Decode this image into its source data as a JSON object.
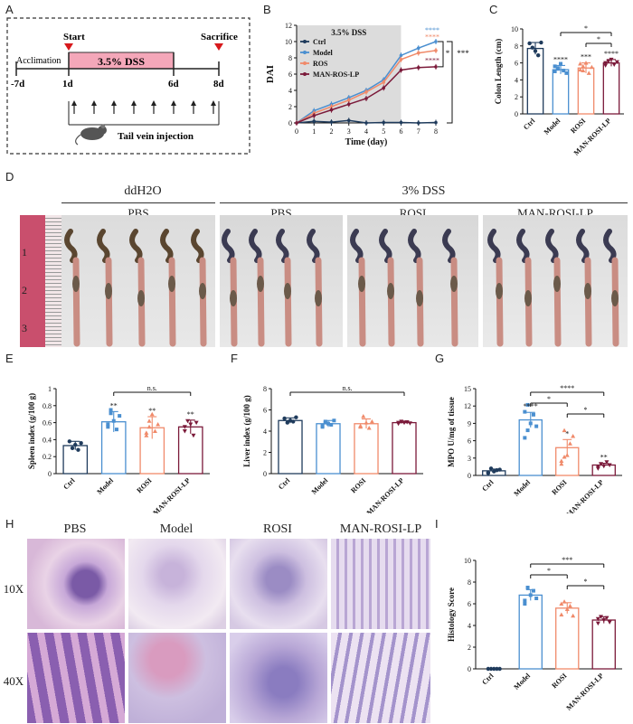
{
  "panel_letters": {
    "A": "A",
    "B": "B",
    "C": "C",
    "D": "D",
    "E": "E",
    "F": "F",
    "G": "G",
    "H": "H",
    "I": "I"
  },
  "panelA": {
    "labels": {
      "start": "Start",
      "sacrifice": "Sacrifice",
      "acclimation": "Acclimation",
      "dss": "3.5% DSS",
      "injection": "Tail vein injection"
    },
    "days": [
      "-7d",
      "1d",
      "6d",
      "8d"
    ],
    "colors": {
      "dss_bar": "#f4a7b9",
      "marker": "#d7191c"
    }
  },
  "chart_data": [
    {
      "id": "B",
      "type": "line",
      "title": "3.5% DSS",
      "xlabel": "Time (day)",
      "ylabel": "DAI",
      "x": [
        0,
        1,
        2,
        3,
        4,
        5,
        6,
        7,
        8
      ],
      "xlim": [
        0,
        8
      ],
      "ylim": [
        0,
        12
      ],
      "yticks": [
        0,
        2,
        4,
        6,
        8,
        10,
        12
      ],
      "shaded_range": [
        0,
        6
      ],
      "series": [
        {
          "name": "Ctrl",
          "color": "#1f3b5c",
          "values": [
            0,
            0.2,
            0.1,
            0.3,
            0,
            0.05,
            0.05,
            0,
            0.05
          ]
        },
        {
          "name": "Model",
          "color": "#4a8fd0",
          "values": [
            0,
            1.5,
            2.3,
            3.1,
            4.0,
            5.3,
            8.3,
            9.2,
            10.0
          ]
        },
        {
          "name": "ROS",
          "color": "#f08a6a",
          "values": [
            0,
            1.2,
            2.0,
            2.8,
            3.8,
            5.0,
            7.8,
            8.6,
            8.9
          ]
        },
        {
          "name": "MAN-ROS-LP",
          "color": "#7b1a3a",
          "values": [
            0,
            0.9,
            1.6,
            2.3,
            3.0,
            4.3,
            6.5,
            6.8,
            6.9
          ]
        }
      ],
      "annotations": {
        "model_sig": "****",
        "ros_sig": "****",
        "manros_sig": "****",
        "bracket_sig1": "*",
        "bracket_sig2": "***"
      }
    },
    {
      "id": "C",
      "type": "bar",
      "ylabel": "Colon Length (cm)",
      "ylim": [
        0,
        10
      ],
      "yticks": [
        0,
        2,
        4,
        6,
        8,
        10
      ],
      "categories": [
        "Ctrl",
        "Model",
        "ROSI",
        "MAN-ROSI-LP"
      ],
      "values": [
        7.7,
        5.2,
        5.4,
        6.0
      ],
      "errors": [
        0.7,
        0.5,
        0.6,
        0.4
      ],
      "points": [
        [
          8.3,
          7.8,
          7.4,
          6.9,
          8.4
        ],
        [
          5.0,
          5.4,
          5.9,
          5.1,
          4.8,
          5.6,
          5.3
        ],
        [
          5.2,
          5.6,
          6.0,
          4.8,
          5.5,
          5.9,
          5.1
        ],
        [
          5.7,
          6.2,
          6.4,
          5.8,
          6.1,
          6.0
        ]
      ],
      "colors": [
        "#1f3b5c",
        "#4a8fd0",
        "#f08a6a",
        "#7b1a3a"
      ],
      "sig_labels": [
        "",
        "****",
        "***",
        "****"
      ],
      "brackets": [
        {
          "from": 1,
          "to": 3,
          "label": "*"
        },
        {
          "from": 2,
          "to": 3,
          "label": "*"
        }
      ]
    },
    {
      "id": "E",
      "type": "bar",
      "ylabel": "Spleen index (g/100 g)",
      "ylim": [
        0,
        1.0
      ],
      "yticks": [
        0.0,
        0.2,
        0.4,
        0.6,
        0.8,
        1.0
      ],
      "categories": [
        "Ctrl",
        "Model",
        "ROSI",
        "MAN-ROSI-LP"
      ],
      "values": [
        0.33,
        0.61,
        0.54,
        0.55
      ],
      "errors": [
        0.05,
        0.12,
        0.13,
        0.08
      ],
      "points": [
        [
          0.38,
          0.3,
          0.34,
          0.28,
          0.36
        ],
        [
          0.55,
          0.75,
          0.62,
          0.52,
          0.68,
          0.58,
          0.71
        ],
        [
          0.45,
          0.62,
          0.7,
          0.5,
          0.58,
          0.48,
          0.55
        ],
        [
          0.5,
          0.62,
          0.58,
          0.45,
          0.6,
          0.55
        ]
      ],
      "colors": [
        "#1f3b5c",
        "#4a8fd0",
        "#f08a6a",
        "#7b1a3a"
      ],
      "sig_labels": [
        "",
        "**",
        "**",
        "**"
      ],
      "brackets": [
        {
          "from": 1,
          "to": 3,
          "label": "n.s."
        }
      ]
    },
    {
      "id": "F",
      "type": "bar",
      "ylabel": "Liver index (g/100 g)",
      "ylim": [
        0,
        8
      ],
      "yticks": [
        0,
        2,
        4,
        6,
        8
      ],
      "categories": [
        "Ctrl",
        "Model",
        "ROSI",
        "MAN-ROSI-LP"
      ],
      "values": [
        5.0,
        4.7,
        4.7,
        4.8
      ],
      "errors": [
        0.25,
        0.3,
        0.45,
        0.15
      ],
      "points": [
        [
          5.2,
          4.8,
          5.0,
          4.9,
          5.3
        ],
        [
          4.5,
          4.9,
          4.7,
          4.6,
          5.0,
          4.4,
          4.8
        ],
        [
          4.4,
          5.4,
          4.8,
          4.3,
          4.9,
          4.5
        ],
        [
          4.7,
          4.9,
          4.8,
          4.85,
          4.75,
          4.8
        ]
      ],
      "colors": [
        "#1f3b5c",
        "#4a8fd0",
        "#f08a6a",
        "#7b1a3a"
      ],
      "sig_labels": [
        "",
        "",
        "",
        ""
      ],
      "brackets": [
        {
          "from": 0,
          "to": 3,
          "label": "n.s."
        }
      ]
    },
    {
      "id": "G",
      "type": "bar",
      "ylabel": "MPO U/mg of tissue",
      "ylim": [
        0,
        15
      ],
      "yticks": [
        0,
        3,
        6,
        9,
        12,
        15
      ],
      "categories": [
        "Ctrl",
        "Model",
        "ROSI",
        "MAN-ROSI-LP"
      ],
      "values": [
        0.8,
        9.6,
        4.8,
        1.8
      ],
      "errors": [
        0.3,
        1.3,
        1.4,
        0.3
      ],
      "points": [
        [
          0.4,
          1.2,
          0.7,
          0.9,
          1.0,
          0.5
        ],
        [
          6.5,
          12.2,
          9.0,
          10.5,
          8.5,
          11.0,
          7.8
        ],
        [
          2.0,
          7.8,
          3.5,
          5.5,
          6.8,
          2.5,
          3.2
        ],
        [
          1.2,
          2.0,
          1.6,
          2.3,
          1.8,
          1.5
        ]
      ],
      "colors": [
        "#1f3b5c",
        "#4a8fd0",
        "#f08a6a",
        "#7b1a3a"
      ],
      "sig_labels": [
        "",
        "****",
        "*",
        "**"
      ],
      "brackets": [
        {
          "from": 1,
          "to": 3,
          "label": "****"
        },
        {
          "from": 1,
          "to": 2,
          "label": "*"
        },
        {
          "from": 2,
          "to": 3,
          "label": "*"
        }
      ]
    },
    {
      "id": "I",
      "type": "bar",
      "ylabel": "Histology Score",
      "ylim": [
        0,
        10
      ],
      "yticks": [
        0,
        2,
        4,
        6,
        8,
        10
      ],
      "categories": [
        "Ctrl",
        "Model",
        "ROSI",
        "MAN-ROSI-LP"
      ],
      "values": [
        0,
        6.8,
        5.6,
        4.5
      ],
      "errors": [
        0,
        0.5,
        0.5,
        0.3
      ],
      "points": [
        [
          0,
          0,
          0,
          0,
          0
        ],
        [
          6.0,
          7.5,
          6.8,
          7.2,
          6.5,
          6.3
        ],
        [
          5.0,
          6.2,
          5.5,
          5.8,
          4.9,
          6.0
        ],
        [
          4.2,
          4.8,
          4.5,
          4.7,
          4.3,
          4.6
        ]
      ],
      "colors": [
        "#1f3b5c",
        "#4a8fd0",
        "#f08a6a",
        "#7b1a3a"
      ],
      "sig_labels": [
        "",
        "",
        "",
        ""
      ],
      "brackets": [
        {
          "from": 1,
          "to": 3,
          "label": "***"
        },
        {
          "from": 1,
          "to": 2,
          "label": "*"
        },
        {
          "from": 2,
          "to": 3,
          "label": "*"
        }
      ]
    }
  ],
  "panelD": {
    "ddh2o": "ddH2O",
    "dss": "3% DSS",
    "groups": [
      "PBS",
      "PBS",
      "ROSI",
      "MAN-ROSI-LP"
    ],
    "ruler_marks": [
      "1",
      "2",
      "3"
    ]
  },
  "panelH": {
    "cols": [
      "PBS",
      "Model",
      "ROSI",
      "MAN-ROSI-LP"
    ],
    "rows": [
      "10X",
      "40X"
    ]
  }
}
